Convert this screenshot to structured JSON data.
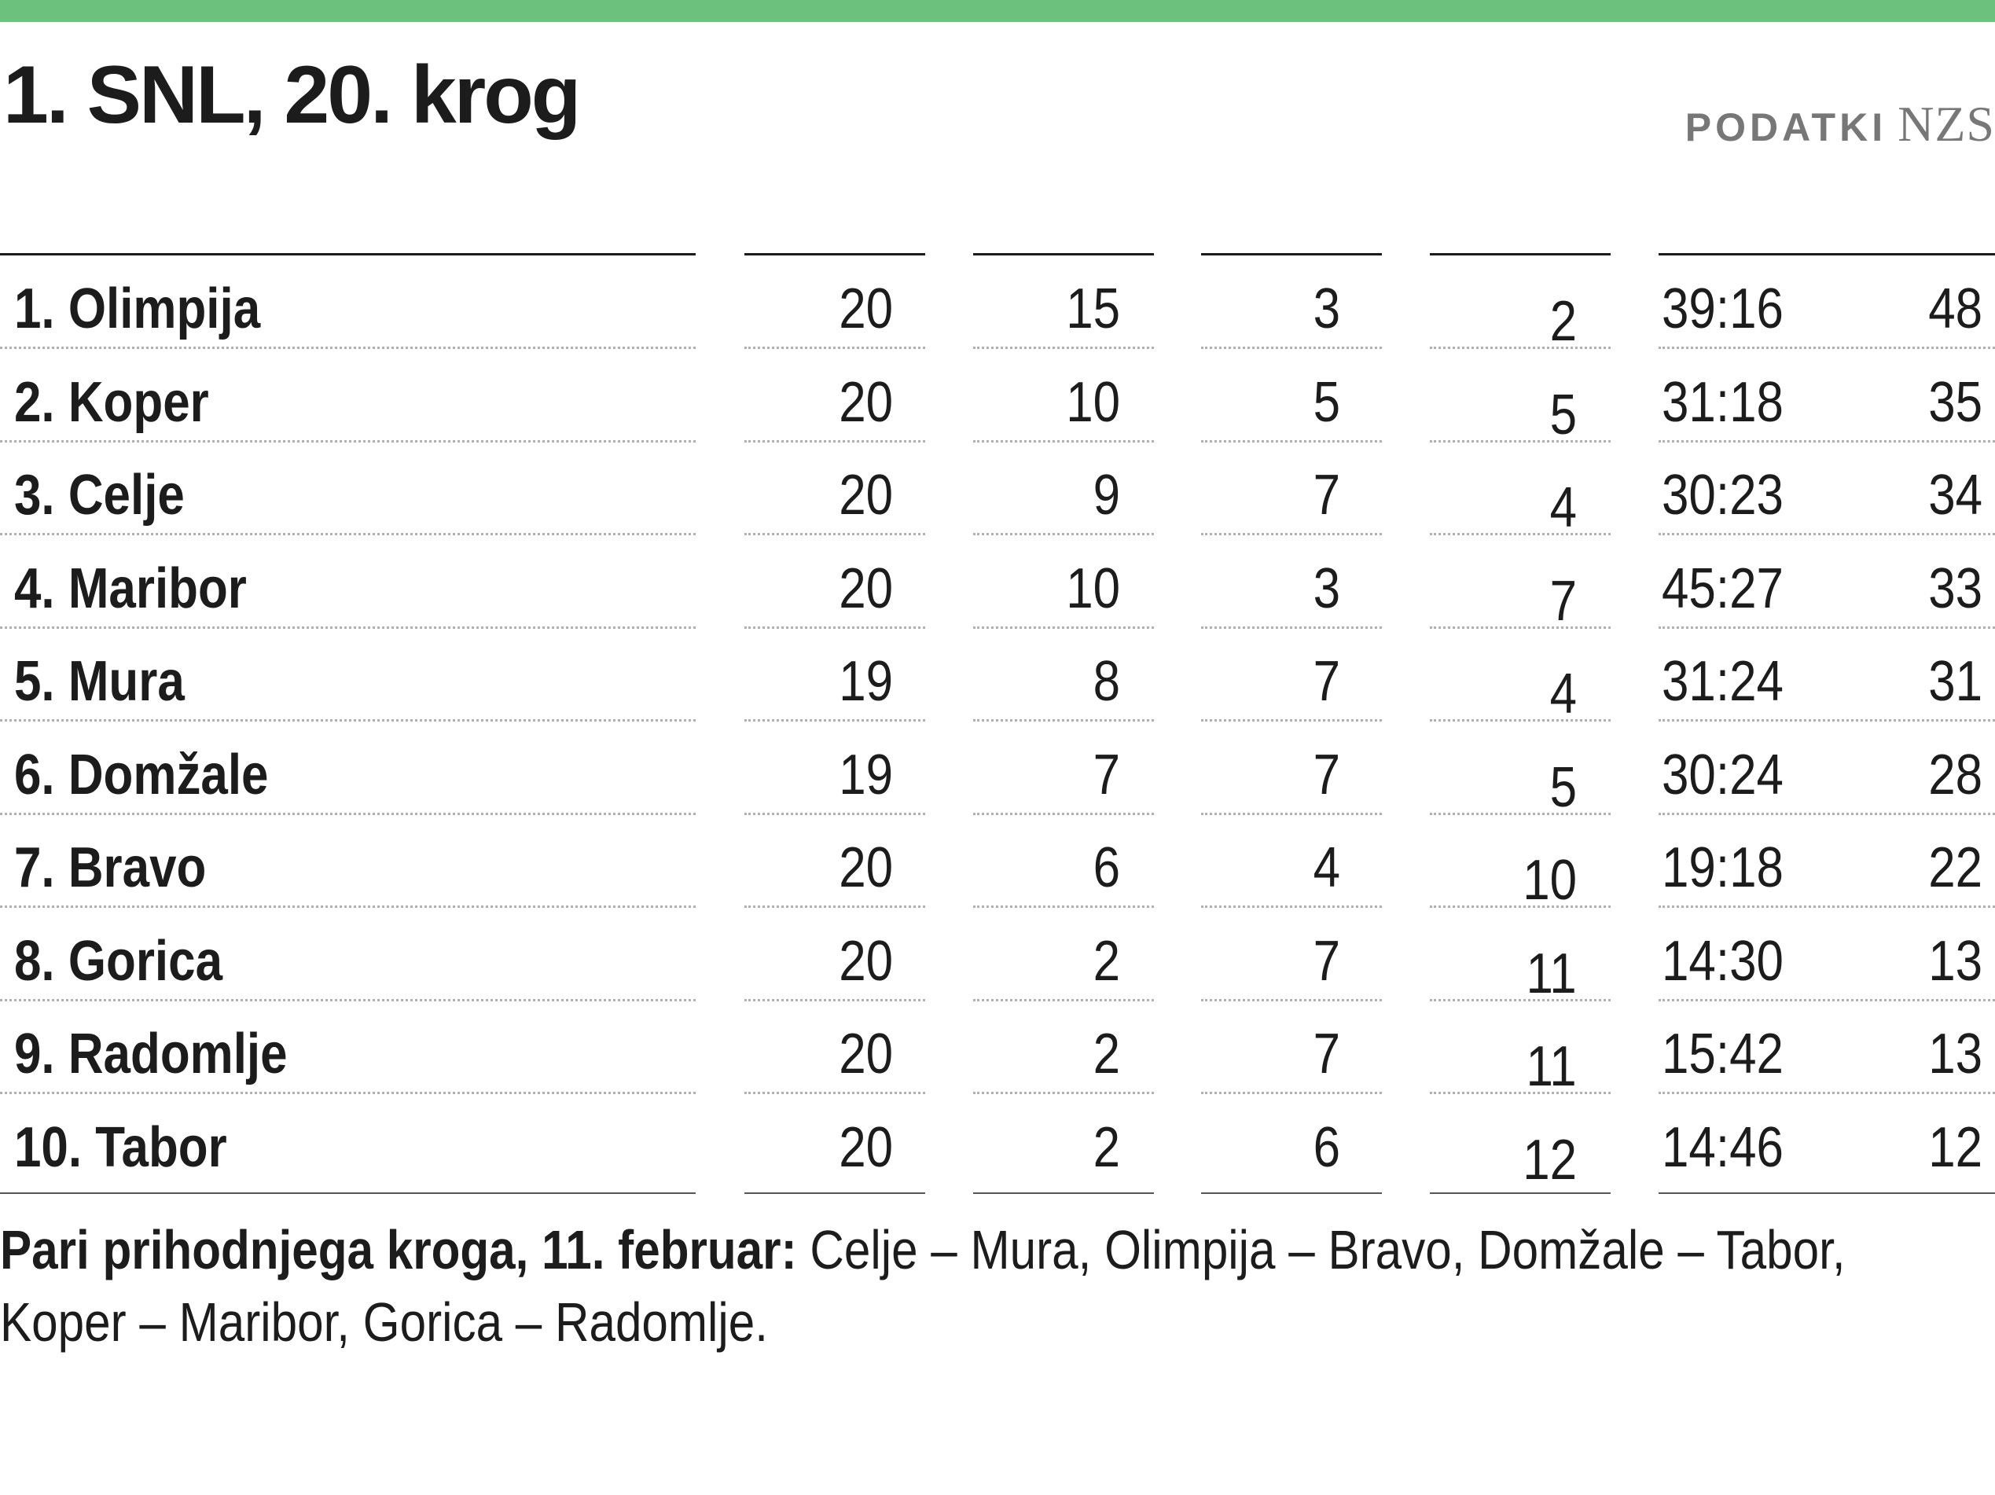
{
  "title": "1. SNL, 20. krog",
  "source": {
    "kicker": "PODATKI",
    "brand": "NZS"
  },
  "colors": {
    "accent": "#6cc17c",
    "text": "#1c1c1c",
    "source": "#777777"
  },
  "standings": [
    {
      "team": "1. Olimpija",
      "played": "20",
      "won": "15",
      "drawn": "3",
      "lost": "2",
      "goals": "39:16",
      "points": "48"
    },
    {
      "team": "2. Koper",
      "played": "20",
      "won": "10",
      "drawn": "5",
      "lost": "5",
      "goals": "31:18",
      "points": "35"
    },
    {
      "team": "3. Celje",
      "played": "20",
      "won": "9",
      "drawn": "7",
      "lost": "4",
      "goals": "30:23",
      "points": "34"
    },
    {
      "team": "4. Maribor",
      "played": "20",
      "won": "10",
      "drawn": "3",
      "lost": "7",
      "goals": "45:27",
      "points": "33"
    },
    {
      "team": "5. Mura",
      "played": "19",
      "won": "8",
      "drawn": "7",
      "lost": "4",
      "goals": "31:24",
      "points": "31"
    },
    {
      "team": "6. Domžale",
      "played": "19",
      "won": "7",
      "drawn": "7",
      "lost": "5",
      "goals": "30:24",
      "points": "28"
    },
    {
      "team": "7. Bravo",
      "played": "20",
      "won": "6",
      "drawn": "4",
      "lost": "10",
      "goals": "19:18",
      "points": "22"
    },
    {
      "team": "8. Gorica",
      "played": "20",
      "won": "2",
      "drawn": "7",
      "lost": "11",
      "goals": "14:30",
      "points": "13"
    },
    {
      "team": "9. Radomlje",
      "played": "20",
      "won": "2",
      "drawn": "7",
      "lost": "11",
      "goals": "15:42",
      "points": "13"
    },
    {
      "team": "10. Tabor",
      "played": "20",
      "won": "2",
      "drawn": "6",
      "lost": "12",
      "goals": "14:46",
      "points": "12"
    }
  ],
  "footnote": {
    "lead": "Pari prihodnjega kroga, 11. februar:",
    "text": " Celje – Mura, Olimpija – Bravo, Domžale – Tabor, Koper – Maribor, Gorica – Radomlje."
  }
}
